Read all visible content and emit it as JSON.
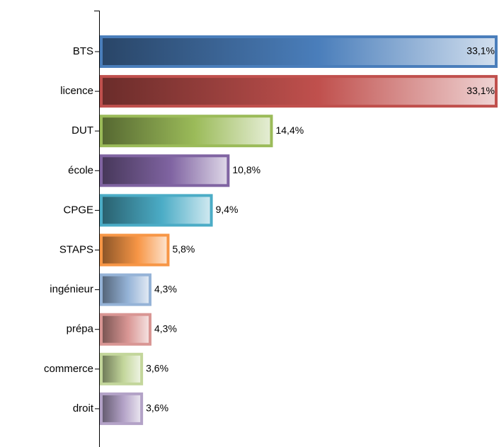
{
  "chart_data": {
    "type": "bar",
    "orientation": "horizontal",
    "categories": [
      "BTS",
      "licence",
      "DUT",
      "école",
      "CPGE",
      "STAPS",
      "ingénieur",
      "prépa",
      "commerce",
      "droit"
    ],
    "values": [
      33.1,
      33.1,
      14.4,
      10.8,
      9.4,
      5.8,
      4.3,
      4.3,
      3.6,
      3.6
    ],
    "value_labels": [
      "33,1%",
      "33,1%",
      "14,4%",
      "10,8%",
      "9,4%",
      "5,8%",
      "4,3%",
      "4,3%",
      "3,6%",
      "3,6%"
    ],
    "colors": [
      "#4a7ebb",
      "#c0504d",
      "#9bbb59",
      "#8064a2",
      "#4bacc6",
      "#f79646",
      "#95b3d7",
      "#d99694",
      "#c3d69b",
      "#b3a2c7"
    ]
  }
}
